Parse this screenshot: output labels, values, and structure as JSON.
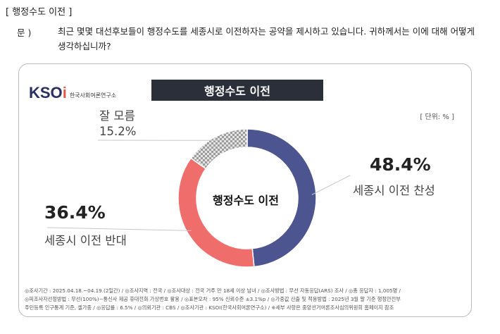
{
  "header": {
    "title": "[ 행정수도 이전 ]",
    "question_label": "문 )",
    "question_text": "최근 몇몇 대선후보들이 행정수도를 세종시로 이전하자는 공약을 제시하고 있습니다. 귀하께서는 이에 대해 어떻게 생각하십니까?"
  },
  "logo": {
    "mark_main": "KSO",
    "mark_accent": "i",
    "org_name": "한국사회여론연구소"
  },
  "chart_title": "행정수도 이전",
  "unit": "[ 단위: % ]",
  "center_label": "행정수도 이전",
  "colors": {
    "approve": "#4d5590",
    "oppose": "#ef6e6b",
    "unknown": "#b8b8b8",
    "title_bg": "#2b2f3a"
  },
  "chart_data": {
    "type": "pie",
    "title": "행정수도 이전",
    "categories": [
      "세종시 이전 찬성",
      "세종시 이전 반대",
      "잘 모름"
    ],
    "values": [
      48.4,
      36.4,
      15.2
    ],
    "value_labels": [
      "48.4%",
      "36.4%",
      "15.2%"
    ],
    "unit": "%"
  },
  "footer": {
    "line1": "◎조사기간 : 2025.04.18.~04.19.(2일간)  / ◎조사지역 : 전국 / ◎조사대상 : 전국 거주 만 18세 이상 남녀 / ◎조사방법 : 무선 자동응답(ARS) 조사 / ◎총 응답자 : 1,005명 /",
    "line2": "◎피조사자선정방법 : 무선(100%)−통신사 제공 휴대전화 가상번호 활용 / ◎표본오차 : 95% 신뢰수준 ±3.1%p / ◎가중값 산출 및 적용방법 : 2025년 3월 말 기준 행정안전부",
    "line3": "주민등록 인구통계 기준, 셀가중 / ◎응답률 : 6.5% / ◎의뢰기관 : CBS / ◎조사기관 : KSOI(한국사회여론연구소) / ※세부 사항은 중앙선거여론조사심의위원회 홈페이지 참조"
  }
}
